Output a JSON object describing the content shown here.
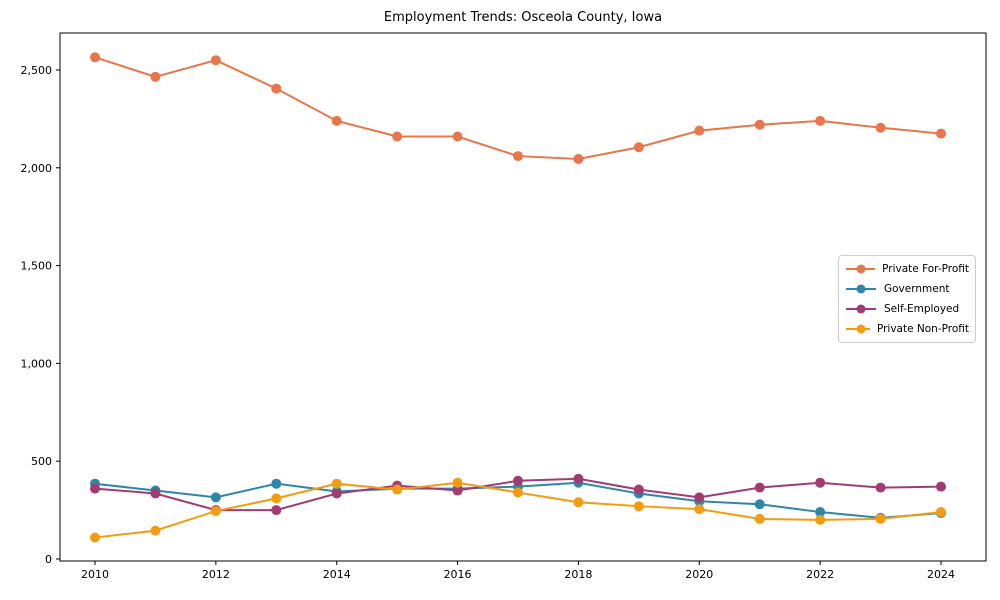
{
  "chart_data": {
    "type": "line",
    "title": "Employment Trends: Osceola County, Iowa",
    "xlabel": "",
    "ylabel": "",
    "grid": false,
    "legend_position": "center right",
    "x": [
      2010,
      2011,
      2012,
      2013,
      2014,
      2015,
      2016,
      2017,
      2018,
      2019,
      2020,
      2021,
      2022,
      2023,
      2024
    ],
    "x_tick_values": [
      2010,
      2012,
      2014,
      2016,
      2018,
      2020,
      2022,
      2024
    ],
    "x_tick_labels": [
      "2010",
      "2012",
      "2014",
      "2016",
      "2018",
      "2020",
      "2022",
      "2024"
    ],
    "y_tick_values": [
      0,
      500,
      1000,
      1500,
      2000,
      2500
    ],
    "y_tick_labels": [
      "0",
      "500",
      "1,000",
      "1,500",
      "2,000",
      "2,500"
    ],
    "ylim": [
      0,
      2690
    ],
    "series": [
      {
        "name": "Private For-Profit",
        "color": "#E8764A",
        "values": [
          2565,
          2465,
          2550,
          2405,
          2240,
          2160,
          2160,
          2060,
          2045,
          2105,
          2190,
          2220,
          2240,
          2205,
          2175
        ]
      },
      {
        "name": "Government",
        "color": "#2E86AB",
        "values": [
          385,
          350,
          315,
          385,
          345,
          360,
          360,
          370,
          390,
          335,
          295,
          280,
          240,
          210,
          235
        ]
      },
      {
        "name": "Self-Employed",
        "color": "#A23B72",
        "values": [
          360,
          335,
          250,
          250,
          335,
          375,
          350,
          400,
          410,
          355,
          315,
          365,
          390,
          365,
          370
        ]
      },
      {
        "name": "Private Non-Profit",
        "color": "#F39C12",
        "values": [
          110,
          145,
          245,
          310,
          385,
          355,
          390,
          340,
          290,
          270,
          255,
          205,
          200,
          205,
          240
        ]
      }
    ]
  }
}
